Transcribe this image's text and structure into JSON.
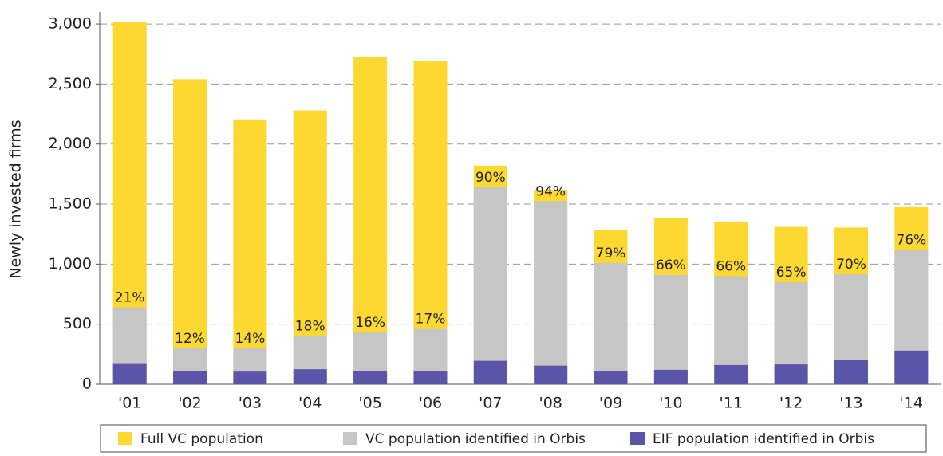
{
  "chart_data": {
    "type": "overlay-bar",
    "y_label": "Newly invested firms",
    "categories": [
      "'01",
      "'02",
      "'03",
      "'04",
      "'05",
      "'06",
      "'07",
      "'08",
      "'09",
      "'10",
      "'11",
      "'12",
      "'13",
      "'14"
    ],
    "series": [
      {
        "name": "Full VC population",
        "color": "#fcd830",
        "values": [
          3020,
          2540,
          2205,
          2280,
          2725,
          2695,
          1820,
          1620,
          1285,
          1385,
          1355,
          1310,
          1305,
          1475
        ]
      },
      {
        "name": "VC population identified in Orbis",
        "color": "#c6c6c6",
        "values": [
          640,
          300,
          300,
          400,
          430,
          460,
          1640,
          1525,
          1010,
          910,
          900,
          850,
          915,
          1120
        ]
      },
      {
        "name": "EIF population identified in Orbis",
        "color": "#5a55a8",
        "values": [
          175,
          110,
          105,
          125,
          110,
          110,
          195,
          155,
          110,
          120,
          160,
          165,
          200,
          280
        ]
      }
    ],
    "share_labels": [
      "21%",
      "12%",
      "14%",
      "18%",
      "16%",
      "17%",
      "90%",
      "94%",
      "79%",
      "66%",
      "66%",
      "65%",
      "70%",
      "76%"
    ],
    "ylim": [
      0,
      3100
    ],
    "yticks": [
      0,
      {
        "value": 500,
        "label": "500"
      },
      {
        "value": 1000,
        "label": "1,000"
      },
      {
        "value": 1500,
        "label": "1,500"
      },
      {
        "value": 2000,
        "label": "2,000"
      },
      {
        "value": 2500,
        "label": "2,500"
      },
      {
        "value": 3000,
        "label": "3,000"
      }
    ],
    "grid": true
  }
}
